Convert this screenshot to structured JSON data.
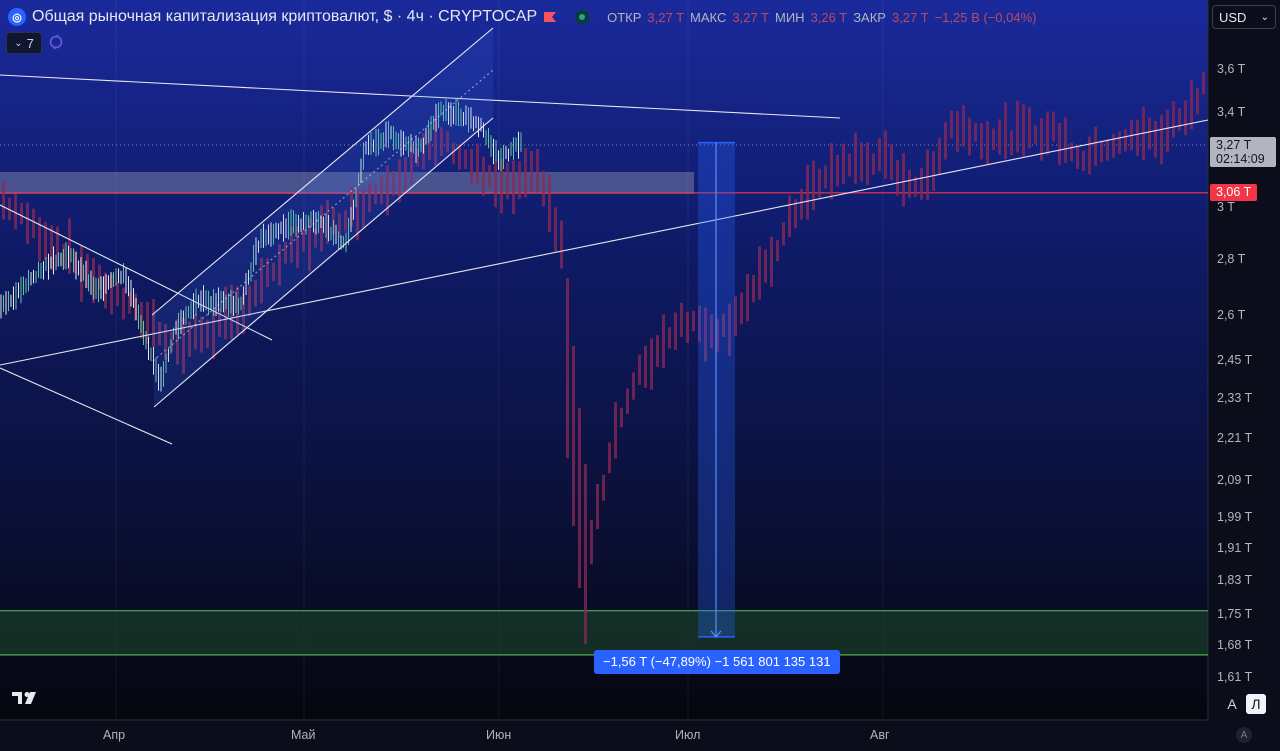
{
  "header": {
    "title": "Общая рыночная капитализация криптовалют, $ · 4ч · CRYPTOCAP",
    "ohlc": [
      {
        "label": "ОТКР",
        "value": "3,27 T"
      },
      {
        "label": "МАКС",
        "value": "3,27 T"
      },
      {
        "label": "МИН",
        "value": "3,26 T"
      },
      {
        "label": "ЗАКР",
        "value": "3,27 T"
      }
    ],
    "change": "−1,25 B (−0,04%)"
  },
  "indicators": {
    "count": "7"
  },
  "currency": {
    "value": "USD"
  },
  "price_tags": {
    "current_price": "3,27 T",
    "countdown": "02:14:09",
    "red_line": "3,06 T"
  },
  "measure": {
    "label": "−1,56 T (−47,89%) −1 561 801 135 131"
  },
  "scale_buttons": {
    "auto": "A",
    "log": "Л"
  },
  "bottom_badge": "A",
  "colors": {
    "up": "#26a69a",
    "down": "#f23645",
    "faded_candle": "#8a2a55",
    "accent": "#2962ff",
    "red_line": "#f23645",
    "green_zone": "#1f4d2e"
  },
  "chart_data": {
    "type": "line",
    "title": "Общая рыночная капитализация криптовалют, $ · 4ч · CRYPTOCAP",
    "xlabel": "",
    "ylabel": "",
    "log_scale": true,
    "grid": false,
    "x_ticks": [
      "Апр",
      "Май",
      "Июн",
      "Июл",
      "Авг"
    ],
    "y_ticks": [
      "3,6 T",
      "3,4 T",
      "3 T",
      "2,8 T",
      "2,6 T",
      "2,45 T",
      "2,33 T",
      "2,21 T",
      "2,09 T",
      "1,99 T",
      "1,91 T",
      "1,83 T",
      "1,75 T",
      "1,68 T",
      "1,61 T"
    ],
    "y_tick_values": [
      3.6,
      3.4,
      3.0,
      2.8,
      2.6,
      2.45,
      2.33,
      2.21,
      2.09,
      1.99,
      1.91,
      1.83,
      1.75,
      1.68,
      1.61
    ],
    "series": [
      {
        "values_approx": [
          2.72,
          2.68,
          2.78,
          2.74,
          2.62,
          2.84,
          2.9,
          2.95,
          3.05,
          3.15,
          3.26,
          3.38,
          3.32,
          3.22,
          3.28
        ]
      },
      {
        "values_approx": [
          3.02,
          2.95,
          2.78,
          2.4,
          2.1,
          1.72,
          1.9,
          2.2,
          2.4,
          2.6,
          2.72,
          2.95,
          3.1,
          3.2,
          3.28,
          3.35,
          3.5,
          3.7
        ]
      }
    ],
    "horizontal_lines": [
      {
        "value": 3.06,
        "label": "3,06 T"
      }
    ],
    "zones": [
      {
        "from": 1.66,
        "to": 1.76
      }
    ],
    "measurement": {
      "from": 3.27,
      "to": 1.7,
      "label": "−1,56 T (−47,89%) −1 561 801 135 131"
    }
  }
}
